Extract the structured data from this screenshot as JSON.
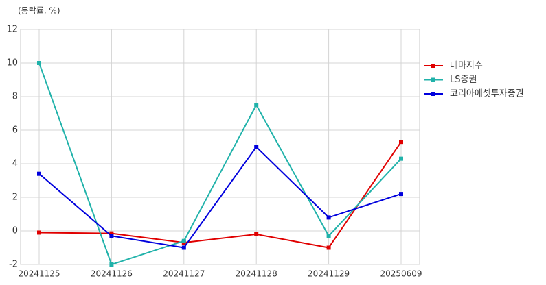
{
  "chart_data": {
    "type": "line",
    "y_label": "(등락률, %)",
    "categories": [
      "20241125",
      "20241126",
      "20241127",
      "20241128",
      "20241129",
      "20250609"
    ],
    "series": [
      {
        "name": "테마지수",
        "color": "#e00000",
        "values": [
          -0.1,
          -0.15,
          -0.7,
          -0.2,
          -1.0,
          5.3
        ]
      },
      {
        "name": "LS증권",
        "color": "#20b2aa",
        "values": [
          10.0,
          -2.0,
          -0.6,
          7.5,
          -0.3,
          4.3
        ]
      },
      {
        "name": "코리아에셋투자증권",
        "color": "#0000dd",
        "values": [
          3.4,
          -0.3,
          -1.0,
          5.0,
          0.8,
          2.2
        ]
      }
    ],
    "ylim": [
      -2,
      12
    ],
    "yticks": [
      -2,
      0,
      2,
      4,
      6,
      8,
      10,
      12
    ],
    "grid": true,
    "legend": "right"
  }
}
